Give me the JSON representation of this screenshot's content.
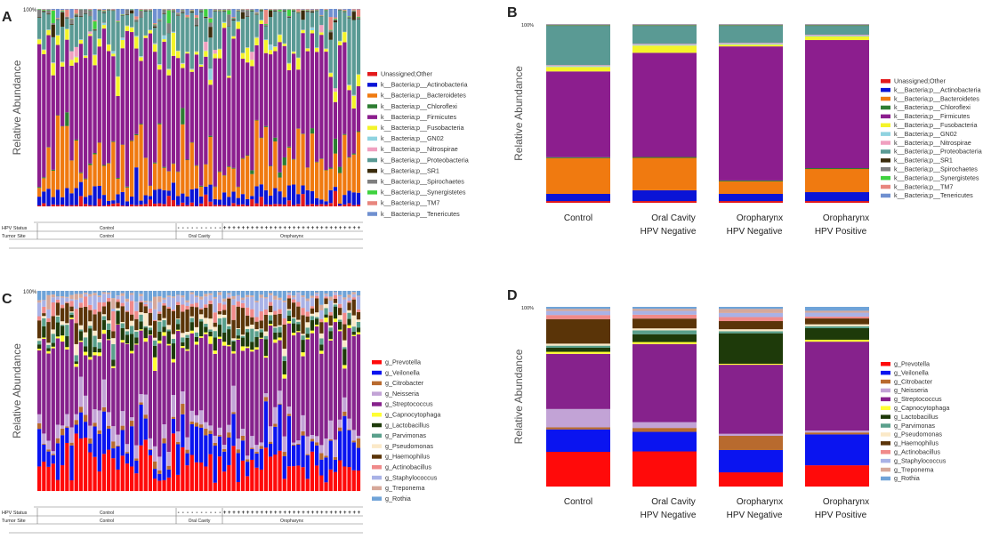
{
  "figure": {
    "panels": [
      "A",
      "B",
      "C",
      "D"
    ],
    "ylabel": "Relative Abundance",
    "top_tick": "100%",
    "table_labels": {
      "hpv_status": "HPV Status",
      "tumor_site": "Tumor Site"
    },
    "site_groups": [
      "Control",
      "Oral Cavity",
      "Oropharynx"
    ],
    "hpv_group_label": "Control",
    "hpv_marks": {
      "negative": "-",
      "positive": "+"
    },
    "group_labels": [
      [
        "Control"
      ],
      [
        "Oral Cavity",
        "HPV Negative"
      ],
      [
        "Oropharynx",
        "HPV Negative"
      ],
      [
        "Oropharynx",
        "HPV Positive"
      ]
    ]
  },
  "colors": {
    "phylum": [
      "#e31a1c",
      "#0a14d6",
      "#f07a10",
      "#2e7d32",
      "#8c1e8e",
      "#f4f42a",
      "#8fd3e0",
      "#f0a0c0",
      "#5a9a94",
      "#3b2c0c",
      "#7f7f7f",
      "#3fd23f",
      "#e8867e",
      "#6f90d0"
    ],
    "genus": [
      "#ff0a0a",
      "#0a14f0",
      "#b86a2e",
      "#c2a3d6",
      "#86228c",
      "#ffff33",
      "#1e3a0a",
      "#5aa08c",
      "#fbe9c8",
      "#5a3408",
      "#f08a8a",
      "#a9b2e6",
      "#d6a89a",
      "#6fa3d8"
    ]
  },
  "chart_data": [
    {
      "panel": "A",
      "type": "bar",
      "stacked": true,
      "title": "",
      "xlabel": "",
      "ylabel": "Relative Abundance",
      "ylim": [
        0,
        100
      ],
      "legend_position": "right",
      "n_samples": 70,
      "sample_groups": {
        "Control": 30,
        "Oral Cavity": 10,
        "Oropharynx": 30
      },
      "hpv_status": {
        "Control": "",
        "Oral Cavity": "-",
        "Oropharynx": "+"
      },
      "categories": [
        "Unassigned;Other",
        "k__Bacteria;p__Actinobacteria",
        "k__Bacteria;p__Bacteroidetes",
        "k__Bacteria;p__Chloroflexi",
        "k__Bacteria;p__Firmicutes",
        "k__Bacteria;p__Fusobacteria",
        "k__Bacteria;p__GN02",
        "k__Bacteria;p__Nitrospirae",
        "k__Bacteria;p__Proteobacteria",
        "k__Bacteria;p__SR1",
        "k__Bacteria;p__Spirochaetes",
        "k__Bacteria;p__Synergistetes",
        "k__Bacteria;p__TM7",
        "k__Bacteria;p__Tenericutes"
      ],
      "group_means": [
        1,
        5,
        18,
        0.3,
        55,
        3,
        0.2,
        0.1,
        16,
        0.3,
        0.4,
        0.2,
        0.3,
        0.2
      ]
    },
    {
      "panel": "B",
      "type": "bar",
      "stacked": true,
      "title": "",
      "xlabel": "",
      "ylabel": "Relative Abundance",
      "ylim": [
        0,
        100
      ],
      "legend_position": "right",
      "categories": [
        "Control",
        "Oral Cavity HPV Negative",
        "Oropharynx HPV Negative",
        "Oropharynx HPV Positive"
      ],
      "series": [
        {
          "name": "Unassigned;Other",
          "values": [
            1,
            1,
            1,
            1
          ]
        },
        {
          "name": "k__Bacteria;p__Actinobacteria",
          "values": [
            4,
            6,
            4,
            5
          ]
        },
        {
          "name": "k__Bacteria;p__Bacteroidetes",
          "values": [
            20,
            18,
            7,
            13
          ]
        },
        {
          "name": "k__Bacteria;p__Chloroflexi",
          "values": [
            0.5,
            0.5,
            0.5,
            0.5
          ]
        },
        {
          "name": "k__Bacteria;p__Firmicutes",
          "values": [
            48,
            58,
            75,
            72
          ]
        },
        {
          "name": "k__Bacteria;p__Fusobacteria",
          "values": [
            2.5,
            4,
            1,
            2
          ]
        },
        {
          "name": "k__Bacteria;p__GN02",
          "values": [
            0.5,
            0.5,
            0.5,
            0.5
          ]
        },
        {
          "name": "k__Bacteria;p__Nitrospirae",
          "values": [
            0.5,
            0.5,
            0.5,
            0.5
          ]
        },
        {
          "name": "k__Bacteria;p__Proteobacteria",
          "values": [
            22,
            10,
            9.5,
            5
          ]
        },
        {
          "name": "k__Bacteria;p__SR1",
          "values": [
            0.2,
            0.2,
            0.2,
            0.2
          ]
        },
        {
          "name": "k__Bacteria;p__Spirochaetes",
          "values": [
            0.2,
            0.2,
            0.2,
            0.2
          ]
        },
        {
          "name": "k__Bacteria;p__Synergistetes",
          "values": [
            0.2,
            0.2,
            0.2,
            0.2
          ]
        },
        {
          "name": "k__Bacteria;p__TM7",
          "values": [
            0.2,
            0.2,
            0.2,
            0.2
          ]
        },
        {
          "name": "k__Bacteria;p__Tenericutes",
          "values": [
            0.2,
            0.2,
            0.2,
            0.2
          ]
        }
      ]
    },
    {
      "panel": "C",
      "type": "bar",
      "stacked": true,
      "title": "",
      "xlabel": "",
      "ylabel": "Relative Abundance",
      "ylim": [
        0,
        100
      ],
      "legend_position": "right",
      "n_samples": 70,
      "sample_groups": {
        "Control": 30,
        "Oral Cavity": 10,
        "Oropharynx": 30
      },
      "hpv_status": {
        "Control": "",
        "Oral Cavity": "-",
        "Oropharynx": "+"
      },
      "categories": [
        "g_Prevotella",
        "g_Veilonella",
        "g_Citrobacter",
        "g_Neisseria",
        "g_Streptococcus",
        "g_Capnocytophaga",
        "g_Lactobacillus",
        "g_Parvimonas",
        "g_Pseudomonas",
        "g_Haemophilus",
        "g_Actinobacillus",
        "g_Staphylococcus",
        "g_Treponema",
        "g_Rothia"
      ],
      "group_means": [
        14,
        12,
        1.5,
        5,
        40,
        1,
        4,
        2,
        1.5,
        6,
        1.5,
        3,
        1,
        2
      ]
    },
    {
      "panel": "D",
      "type": "bar",
      "stacked": true,
      "title": "",
      "xlabel": "",
      "ylabel": "Relative Abundance",
      "ylim": [
        0,
        100
      ],
      "legend_position": "right",
      "categories": [
        "Control",
        "Oral Cavity HPV Negative",
        "Oropharynx HPV Negative",
        "Oropharynx HPV Positive"
      ],
      "series": [
        {
          "name": "g_Prevotella",
          "values": [
            17,
            18,
            7,
            11
          ]
        },
        {
          "name": "g_Veilonella",
          "values": [
            11,
            10,
            11,
            16
          ]
        },
        {
          "name": "g_Citrobacter",
          "values": [
            1,
            2,
            7,
            1
          ]
        },
        {
          "name": "g_Neisseria",
          "values": [
            9,
            3,
            1,
            1
          ]
        },
        {
          "name": "g_Streptococcus",
          "values": [
            27,
            40,
            34,
            46
          ]
        },
        {
          "name": "g_Capnocytophaga",
          "values": [
            1,
            1,
            0.5,
            1
          ]
        },
        {
          "name": "g_Lactobacillus",
          "values": [
            2,
            4,
            15,
            6
          ]
        },
        {
          "name": "g_Parvimonas",
          "values": [
            1,
            2,
            1,
            1
          ]
        },
        {
          "name": "g_Pseudomonas",
          "values": [
            1,
            1,
            1,
            1
          ]
        },
        {
          "name": "g_Haemophilus",
          "values": [
            12,
            5,
            4,
            3
          ]
        },
        {
          "name": "g_Actinobacillus",
          "values": [
            2,
            2,
            2,
            1
          ]
        },
        {
          "name": "g_Staphylococcus",
          "values": [
            2,
            2,
            2,
            2
          ]
        },
        {
          "name": "g_Treponema",
          "values": [
            1,
            1,
            2,
            1
          ]
        },
        {
          "name": "g_Rothia",
          "values": [
            1,
            1,
            1,
            2
          ]
        }
      ]
    }
  ]
}
